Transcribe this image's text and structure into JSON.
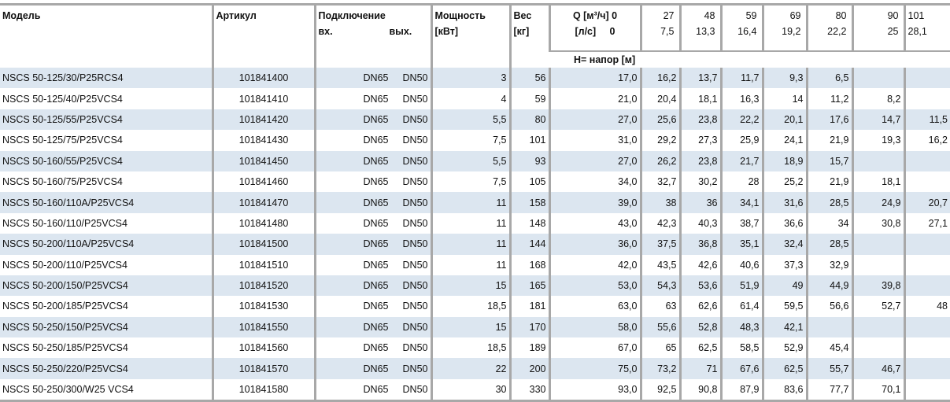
{
  "headers": {
    "model": "Модель",
    "article": "Артикул",
    "connection": "Подключение",
    "conn_in": "вх.",
    "conn_out": "вых.",
    "power": "Мощность",
    "power_unit": "[кВт]",
    "weight": "Вес",
    "weight_unit": "[кг]",
    "q_m3h_label": "Q [м³/ч] 0",
    "q_ls_label": "[л/с]     0",
    "q_m3h": [
      "27",
      "48",
      "59",
      "69",
      "80",
      "90",
      "101"
    ],
    "q_ls": [
      "7,5",
      "13,3",
      "16,4",
      "19,2",
      "22,2",
      "25",
      "28,1"
    ],
    "head_label": "H= напор [м]"
  },
  "rows": [
    {
      "model": "NSCS 50-125/30/P25RCS4",
      "article": "101841400",
      "in": "DN65",
      "out": "DN50",
      "power": "3",
      "weight": "56",
      "h": [
        "17,0",
        "16,2",
        "13,7",
        "11,7",
        "9,3",
        "6,5",
        "",
        ""
      ]
    },
    {
      "model": "NSCS 50-125/40/P25VCS4",
      "article": "101841410",
      "in": "DN65",
      "out": "DN50",
      "power": "4",
      "weight": "59",
      "h": [
        "21,0",
        "20,4",
        "18,1",
        "16,3",
        "14",
        "11,2",
        "8,2",
        ""
      ]
    },
    {
      "model": "NSCS 50-125/55/P25VCS4",
      "article": "101841420",
      "in": "DN65",
      "out": "DN50",
      "power": "5,5",
      "weight": "80",
      "h": [
        "27,0",
        "25,6",
        "23,8",
        "22,2",
        "20,1",
        "17,6",
        "14,7",
        "11,5"
      ]
    },
    {
      "model": "NSCS 50-125/75/P25VCS4",
      "article": "101841430",
      "in": "DN65",
      "out": "DN50",
      "power": "7,5",
      "weight": "101",
      "h": [
        "31,0",
        "29,2",
        "27,3",
        "25,9",
        "24,1",
        "21,9",
        "19,3",
        "16,2"
      ]
    },
    {
      "model": "NSCS 50-160/55/P25VCS4",
      "article": "101841450",
      "in": "DN65",
      "out": "DN50",
      "power": "5,5",
      "weight": "93",
      "h": [
        "27,0",
        "26,2",
        "23,8",
        "21,7",
        "18,9",
        "15,7",
        "",
        ""
      ]
    },
    {
      "model": "NSCS 50-160/75/P25VCS4",
      "article": "101841460",
      "in": "DN65",
      "out": "DN50",
      "power": "7,5",
      "weight": "105",
      "h": [
        "34,0",
        "32,7",
        "30,2",
        "28",
        "25,2",
        "21,9",
        "18,1",
        ""
      ]
    },
    {
      "model": "NSCS 50-160/110A/P25VCS4",
      "article": "101841470",
      "in": "DN65",
      "out": "DN50",
      "power": "11",
      "weight": "158",
      "h": [
        "39,0",
        "38",
        "36",
        "34,1",
        "31,6",
        "28,5",
        "24,9",
        "20,7"
      ]
    },
    {
      "model": "NSCS 50-160/110/P25VCS4",
      "article": "101841480",
      "in": "DN65",
      "out": "DN50",
      "power": "11",
      "weight": "148",
      "h": [
        "43,0",
        "42,3",
        "40,3",
        "38,7",
        "36,6",
        "34",
        "30,8",
        "27,1"
      ]
    },
    {
      "model": "NSCS 50-200/110A/P25VCS4",
      "article": "101841500",
      "in": "DN65",
      "out": "DN50",
      "power": "11",
      "weight": "144",
      "h": [
        "36,0",
        "37,5",
        "36,8",
        "35,1",
        "32,4",
        "28,5",
        "",
        ""
      ]
    },
    {
      "model": "NSCS 50-200/110/P25VCS4",
      "article": "101841510",
      "in": "DN65",
      "out": "DN50",
      "power": "11",
      "weight": "168",
      "h": [
        "42,0",
        "43,5",
        "42,6",
        "40,6",
        "37,3",
        "32,9",
        "",
        ""
      ]
    },
    {
      "model": "NSCS 50-200/150/P25VCS4",
      "article": "101841520",
      "in": "DN65",
      "out": "DN50",
      "power": "15",
      "weight": "165",
      "h": [
        "53,0",
        "54,3",
        "53,6",
        "51,9",
        "49",
        "44,9",
        "39,8",
        ""
      ]
    },
    {
      "model": "NSCS 50-200/185/P25VCS4",
      "article": "101841530",
      "in": "DN65",
      "out": "DN50",
      "power": "18,5",
      "weight": "181",
      "h": [
        "63,0",
        "63",
        "62,6",
        "61,4",
        "59,5",
        "56,6",
        "52,7",
        "48"
      ]
    },
    {
      "model": "NSCS 50-250/150/P25VCS4",
      "article": "101841550",
      "in": "DN65",
      "out": "DN50",
      "power": "15",
      "weight": "170",
      "h": [
        "58,0",
        "55,6",
        "52,8",
        "48,3",
        "42,1",
        "",
        "",
        ""
      ]
    },
    {
      "model": "NSCS 50-250/185/P25VCS4",
      "article": "101841560",
      "in": "DN65",
      "out": "DN50",
      "power": "18,5",
      "weight": "189",
      "h": [
        "67,0",
        "65",
        "62,5",
        "58,5",
        "52,9",
        "45,4",
        "",
        ""
      ]
    },
    {
      "model": "NSCS 50-250/220/P25VCS4",
      "article": "101841570",
      "in": "DN65",
      "out": "DN50",
      "power": "22",
      "weight": "200",
      "h": [
        "75,0",
        "73,2",
        "71",
        "67,6",
        "62,5",
        "55,7",
        "46,7",
        ""
      ]
    },
    {
      "model": "NSCS 50-250/300/W25 VCS4",
      "article": "101841580",
      "in": "DN65",
      "out": "DN50",
      "power": "30",
      "weight": "330",
      "h": [
        "93,0",
        "92,5",
        "90,8",
        "87,9",
        "83,6",
        "77,7",
        "70,1",
        ""
      ]
    }
  ]
}
